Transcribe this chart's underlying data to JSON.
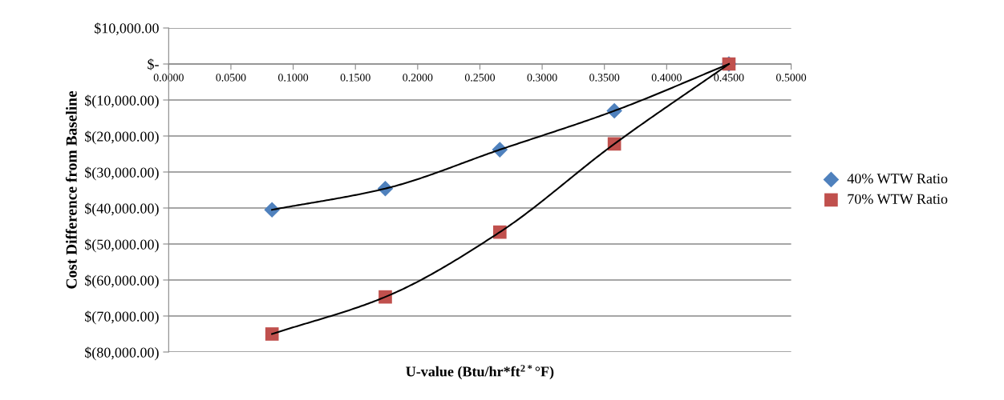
{
  "chart_data": {
    "type": "scatter",
    "xlabel": "U-value (Btu/hr*ft$^{2*}$°F)",
    "ylabel": "Cost Difference from Baseline",
    "series": [
      {
        "name": "40% WTW Ratio",
        "color": "#4f81bd",
        "marker": "diamond",
        "x": [
          0.083,
          0.174,
          0.266,
          0.358,
          0.45
        ],
        "values": [
          -40500,
          -34600,
          -23800,
          -13000,
          0
        ]
      },
      {
        "name": "70% WTW Ratio",
        "color": "#c0504d",
        "marker": "square",
        "x": [
          0.083,
          0.174,
          0.266,
          0.358,
          0.45
        ],
        "values": [
          -75000,
          -64700,
          -46700,
          -22200,
          0
        ]
      },
      {
        "type": "line",
        "color": "#000000",
        "marker": "none",
        "x": [
          0.083,
          0.174,
          0.266,
          0.358,
          0.45
        ],
        "values": [
          -40500,
          -34600,
          -23800,
          -13000,
          0
        ]
      },
      {
        "type": "line",
        "color": "#000000",
        "marker": "none",
        "x": [
          0.083,
          0.174,
          0.266,
          0.358,
          0.45
        ],
        "values": [
          -75000,
          -64700,
          -46700,
          -22200,
          0
        ]
      }
    ],
    "xlim": [
      0,
      0.5
    ],
    "xticks": [
      {
        "value": 0,
        "label": "0.0000"
      },
      {
        "value": 0.05,
        "label": "0.0500"
      },
      {
        "value": 0.1,
        "label": "0.1000"
      },
      {
        "value": 0.15,
        "label": "0.1500"
      },
      {
        "value": 0.2,
        "label": "0.2000"
      },
      {
        "value": 0.25,
        "label": "0.2500"
      },
      {
        "value": 0.3,
        "label": "0.3000"
      },
      {
        "value": 0.35,
        "label": "0.3500"
      },
      {
        "value": 0.4,
        "label": "0.4000"
      },
      {
        "value": 0.45,
        "label": "0.4500"
      },
      {
        "value": 0.5,
        "label": "0.5000"
      }
    ],
    "ylim": [
      -80000,
      10000
    ],
    "yticks": [
      {
        "value": 10000,
        "label": "$10,000.00"
      },
      {
        "value": 0,
        "label": "$-"
      },
      {
        "value": -10000,
        "label": "$(10,000.00)"
      },
      {
        "value": -20000,
        "label": "$(20,000.00)"
      },
      {
        "value": -30000,
        "label": "$(30,000.00)"
      },
      {
        "value": -40000,
        "label": "$(40,000.00)"
      },
      {
        "value": -50000,
        "label": "$(50,000.00)"
      },
      {
        "value": -60000,
        "label": "$(60,000.00)"
      },
      {
        "value": -70000,
        "label": "$(70,000.00)"
      },
      {
        "value": -80000,
        "label": "$(80,000.00)"
      }
    ],
    "grid": "y",
    "legend": "right"
  }
}
